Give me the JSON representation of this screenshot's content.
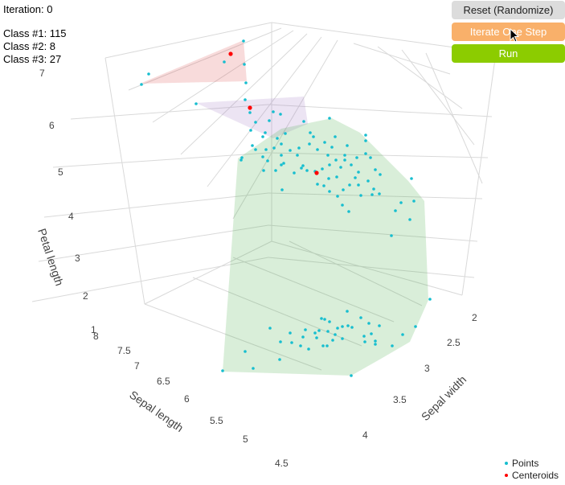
{
  "status": {
    "iteration": "Iteration: 0",
    "class1": "Class #1: 115",
    "class2": "Class #2: 8",
    "class3": "Class #3: 27"
  },
  "buttons": {
    "reset": "Reset (Randomize)",
    "step": "Iterate One Step",
    "run": "Run"
  },
  "axes": {
    "z_title": "Petal length",
    "x_title": "Sepal length",
    "y_title": "Sepal width",
    "z_ticks": [
      "7",
      "6",
      "5",
      "4",
      "3",
      "2",
      "1"
    ],
    "x_ticks": [
      "8",
      "7.5",
      "7",
      "6.5",
      "6",
      "5.5",
      "5",
      "4.5"
    ],
    "y_ticks": [
      "2",
      "2.5",
      "3",
      "3.5",
      "4"
    ]
  },
  "legend": {
    "points": "Points",
    "centroids": "Centeroids"
  },
  "colors": {
    "points": "#17becf",
    "centroids": "#ff0000",
    "class1": "#2ca02c",
    "class2": "#9467bd",
    "class3": "#d62728"
  }
}
